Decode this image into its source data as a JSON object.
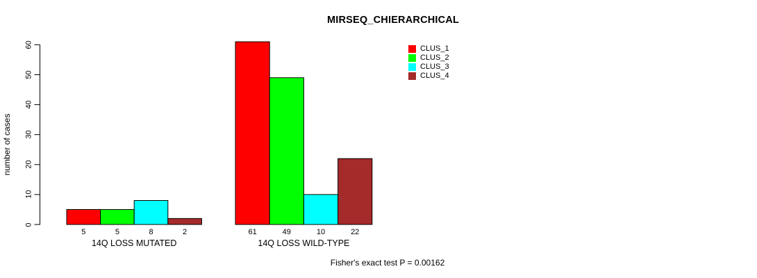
{
  "title": "MIRSEQ_CHIERARCHICAL",
  "footer": "Fisher's exact test P = 0.00162",
  "y_axis_label": "number of cases",
  "chart_data": {
    "type": "bar",
    "title": "MIRSEQ_CHIERARCHICAL",
    "categories": [
      "14Q LOSS MUTATED",
      "14Q LOSS WILD-TYPE"
    ],
    "series": [
      {
        "name": "CLUS_1",
        "color": "#FF0000",
        "values": [
          5,
          61
        ]
      },
      {
        "name": "CLUS_2",
        "color": "#00FF00",
        "values": [
          5,
          49
        ]
      },
      {
        "name": "CLUS_3",
        "color": "#00FFFF",
        "values": [
          8,
          10
        ]
      },
      {
        "name": "CLUS_4",
        "color": "#A52A2A",
        "values": [
          2,
          22
        ]
      }
    ],
    "bar_value_labels": [
      [
        "5",
        "5",
        "8",
        "2"
      ],
      [
        "61",
        "49",
        "10",
        "22"
      ]
    ],
    "xlabel": "",
    "ylabel": "number of cases",
    "ylim": [
      0,
      63
    ],
    "yticks": [
      0,
      10,
      20,
      30,
      40,
      50,
      60
    ],
    "grid": false,
    "legend_position": "top-right",
    "annotation": "Fisher's exact test P = 0.00162",
    "bar_border_color": "#000000",
    "background_color": "#FFFFFF"
  }
}
